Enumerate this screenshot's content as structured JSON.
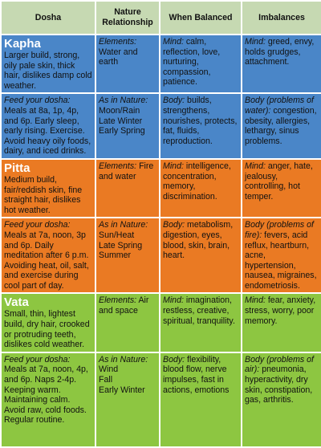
{
  "table": {
    "header": [
      "Dosha",
      "Nature Relationship",
      "When Balanced",
      "Imbalances"
    ],
    "rows": [
      {
        "cells": [
          {
            "title": "Kapha",
            "text": "Larger build, strong, oily pale skin, thick hair, dislikes damp cold weather."
          },
          {
            "label": "Elements:",
            "text": "Water and earth"
          },
          {
            "label": "Mind:",
            "text": "calm, reflection, love, nurturing, compassion, patience."
          },
          {
            "label": "Mind:",
            "text": "greed, envy, holds grudges, attachment."
          }
        ]
      },
      {
        "cells": [
          {
            "label": "Feed your dosha:",
            "text": "Meals at 8a, 1p, 4p, and 6p. Early sleep, early rising. Exercise. Avoid heavy oily foods, dairy, and iced drinks."
          },
          {
            "label": "As in Nature:",
            "lines": [
              "Moon/Rain",
              "Late Winter",
              "Early Spring"
            ]
          },
          {
            "label": "Body:",
            "text": "builds, strengthens, nourishes, protects, fat, fluids, reproduction."
          },
          {
            "label": "Body (problems of water):",
            "text": "congestion, obesity, allergies, lethargy, sinus problems."
          }
        ]
      },
      {
        "cells": [
          {
            "title": "Pitta",
            "text": "Medium build, fair/reddish skin, fine straight hair, dislikes hot weather."
          },
          {
            "label": "Elements:",
            "text": "Fire and water"
          },
          {
            "label": "Mind:",
            "text": "intelligence, concentration, memory, discrimination."
          },
          {
            "label": "Mind:",
            "text": "anger, hate, jealousy, controlling, hot temper."
          }
        ]
      },
      {
        "cells": [
          {
            "label": "Feed your dosha:",
            "text": "Meals at 7a, noon, 3p and 6p. Daily meditation after 6 p.m. Avoiding heat, oil, salt, and exercise during cool part of day."
          },
          {
            "label": "As in Nature:",
            "lines": [
              "Sun/Heat",
              "Late Spring",
              "Summer"
            ]
          },
          {
            "label": "Body:",
            "text": "metabolism, digestion, eyes, blood, skin, brain, heart."
          },
          {
            "label": "Body (problems of fire):",
            "text": "fevers, acid reflux, heartburn, acne, hypertension, nausea, migraines, endometriosis."
          }
        ]
      },
      {
        "cells": [
          {
            "title": "Vata",
            "text": "Small, thin, lightest build, dry hair, crooked or protruding teeth, dislikes cold weather."
          },
          {
            "label": "Elements:",
            "text": "Air and space"
          },
          {
            "label": "Mind:",
            "text": "imagination, restless, creative, spiritual, tranquility."
          },
          {
            "label": "Mind:",
            "text": "fear, anxiety, stress, worry, poor memory."
          }
        ]
      },
      {
        "cells": [
          {
            "label": "Feed your dosha:",
            "text": "Meals at 7a, noon, 4p, and 6p. Naps 2-4p. Keeping warm. Maintaining calm. Avoid raw, cold foods. Regular routine."
          },
          {
            "label": "As in Nature:",
            "lines": [
              "Wind",
              "Fall",
              "Early Winter"
            ]
          },
          {
            "label": "Body:",
            "text": "flexibility, blood flow, nerve impulses, fast in actions, emotions"
          },
          {
            "label": "Body (problems of air):",
            "text": "pneumonia, hyperactivity, dry skin, constipation, gas, arthritis."
          }
        ]
      }
    ]
  }
}
